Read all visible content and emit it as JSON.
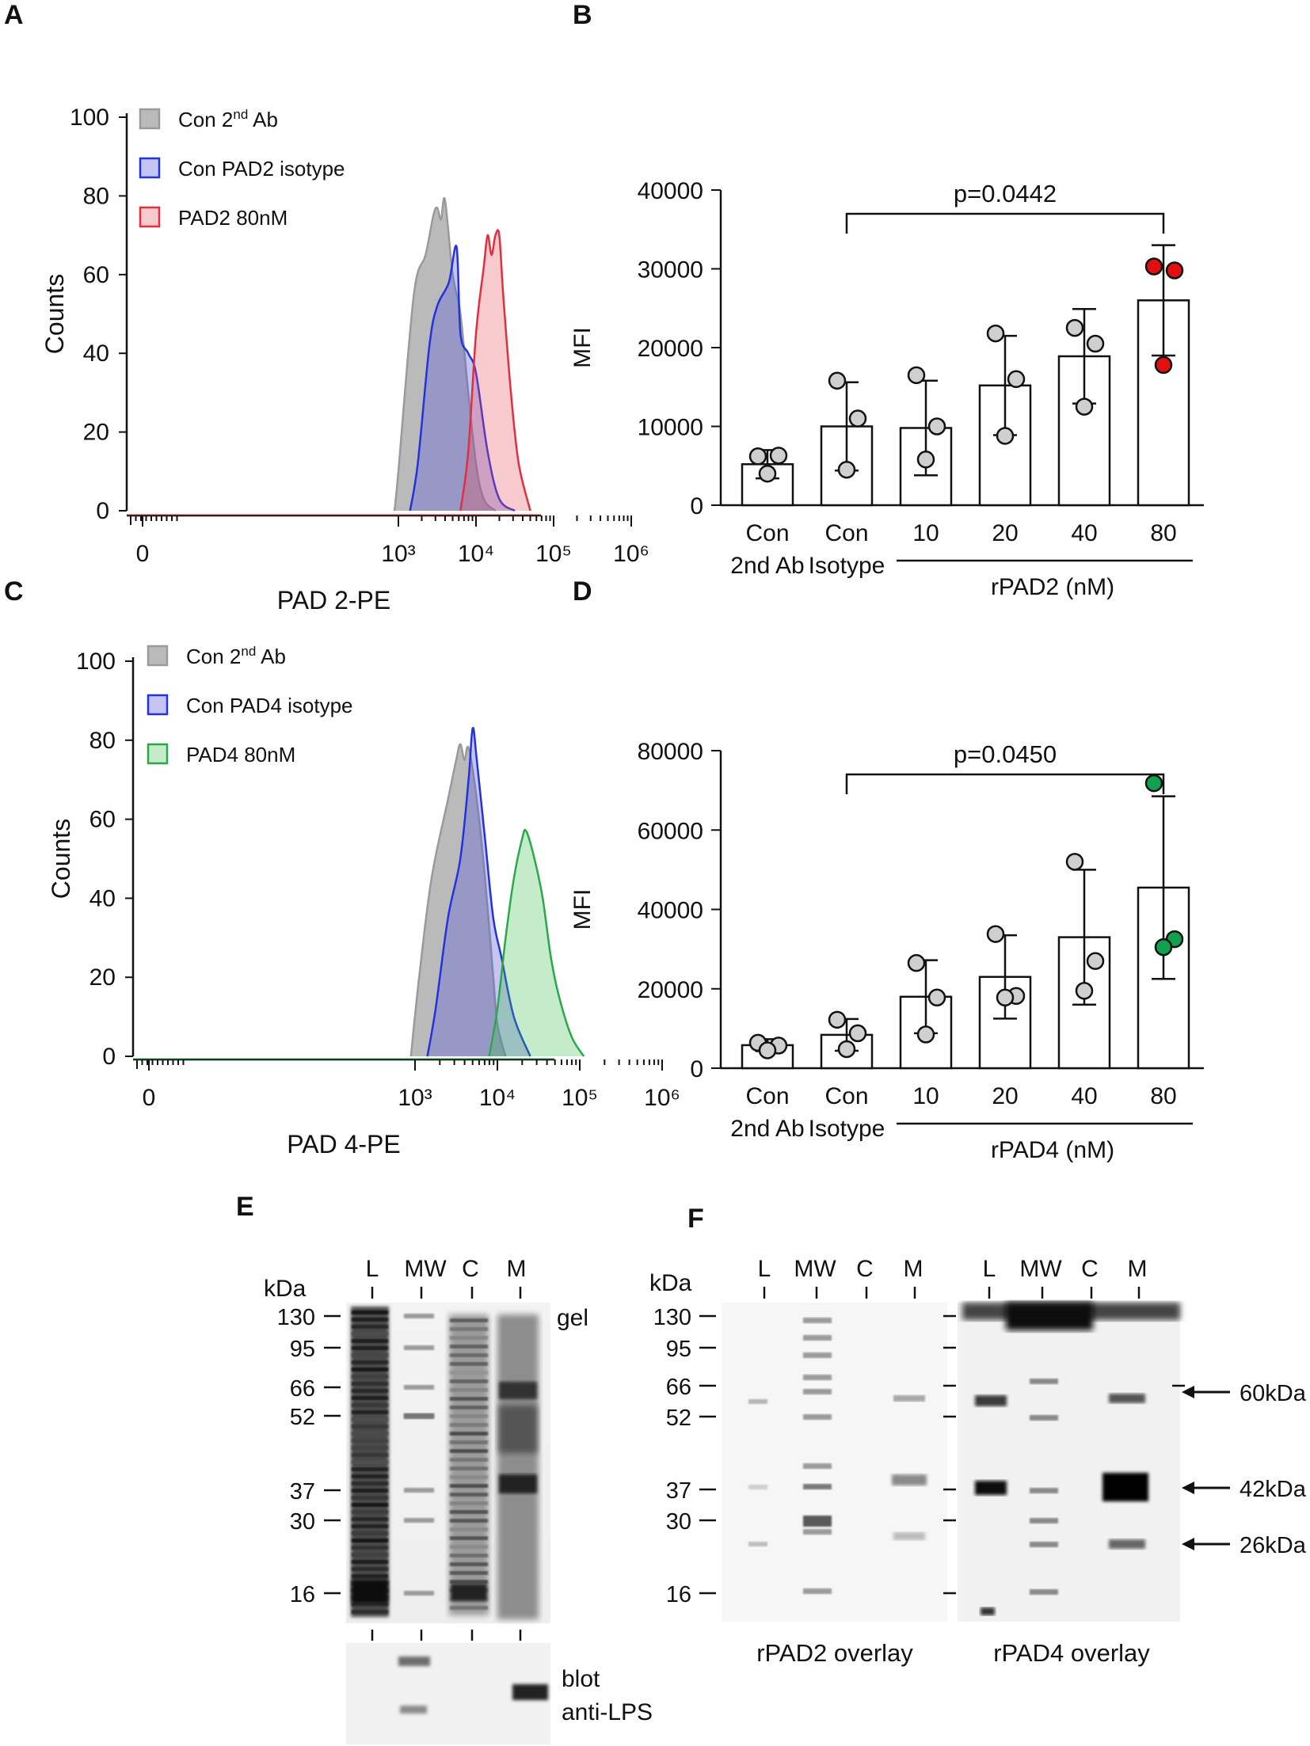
{
  "panels": {
    "A": {
      "letter": "A"
    },
    "B": {
      "letter": "B"
    },
    "C": {
      "letter": "C"
    },
    "D": {
      "letter": "D"
    },
    "E": {
      "letter": "E"
    },
    "F": {
      "letter": "F"
    }
  },
  "colors": {
    "gray": "#9a9a9a",
    "blue": "#2233dd",
    "red": "#e03040",
    "green": "#2aa84a",
    "dot_gray": "#cfcfcf",
    "dot_red": "#e01010",
    "dot_green": "#10a050"
  },
  "chart_data": [
    {
      "id": "A",
      "type": "area",
      "title": "",
      "xlabel": "PAD 2-PE",
      "ylabel": "Counts",
      "ylim": [
        0,
        100
      ],
      "yticks": [
        "0",
        "20",
        "40",
        "60",
        "80",
        "100"
      ],
      "xticks": [
        "0",
        "10³",
        "10⁴",
        "10⁵",
        "10⁶"
      ],
      "legend": [
        "Con 2nd Ab",
        "Con PAD2 isotype",
        "PAD2 80nM"
      ],
      "legend_placement": "top-left",
      "series": [
        {
          "name": "Con 2nd Ab",
          "color": "gray",
          "x": [
            2.95,
            3.0,
            3.2,
            3.35,
            3.45,
            3.5,
            3.55,
            3.6,
            3.7,
            3.8,
            3.9,
            4.0,
            4.1,
            4.25
          ],
          "y": [
            0,
            10,
            55,
            65,
            75,
            77,
            74,
            79,
            60,
            50,
            30,
            12,
            3,
            0
          ]
        },
        {
          "name": "Con PAD2 isotype",
          "color": "blue",
          "x": [
            3.15,
            3.25,
            3.4,
            3.5,
            3.65,
            3.75,
            3.8,
            3.9,
            4.0,
            4.15,
            4.3,
            4.5
          ],
          "y": [
            0,
            12,
            42,
            52,
            58,
            67,
            45,
            40,
            35,
            15,
            3,
            0
          ]
        },
        {
          "name": "PAD2 80nM",
          "color": "red",
          "x": [
            3.8,
            3.9,
            4.0,
            4.1,
            4.15,
            4.2,
            4.25,
            4.3,
            4.35,
            4.45,
            4.55,
            4.7
          ],
          "y": [
            0,
            15,
            45,
            62,
            70,
            65,
            70,
            70,
            55,
            30,
            12,
            0
          ]
        }
      ]
    },
    {
      "id": "B",
      "type": "bar",
      "ylabel": "MFI",
      "ylim": [
        0,
        40000
      ],
      "yticks": [
        "0",
        "10000",
        "20000",
        "30000",
        "40000"
      ],
      "categories": [
        "Con\n2nd Ab",
        "Con\nIsotype",
        "10",
        "20",
        "40",
        "80"
      ],
      "group_label": "rPAD2 (nM)",
      "values": [
        5200,
        10000,
        9800,
        15200,
        18900,
        26000
      ],
      "sd": [
        1800,
        5600,
        6000,
        6300,
        6000,
        7000
      ],
      "points": [
        [
          6200,
          6300,
          4000
        ],
        [
          15800,
          11000,
          4500
        ],
        [
          16500,
          10000,
          5800
        ],
        [
          21800,
          16000,
          8800
        ],
        [
          22500,
          20500,
          12500
        ],
        [
          30300,
          29800,
          17800
        ]
      ],
      "point_colors": [
        "dot_gray",
        "dot_gray",
        "dot_gray",
        "dot_gray",
        "dot_gray",
        "dot_red"
      ],
      "significance": {
        "from": 1,
        "to": 5,
        "label": "p=0.0442"
      }
    },
    {
      "id": "C",
      "type": "area",
      "xlabel": "PAD 4-PE",
      "ylabel": "Counts",
      "ylim": [
        0,
        100
      ],
      "yticks": [
        "0",
        "20",
        "40",
        "60",
        "80",
        "100"
      ],
      "xticks": [
        "0",
        "10³",
        "10⁴",
        "10⁵",
        "10⁶"
      ],
      "legend": [
        "Con 2nd Ab",
        "Con PAD4 isotype",
        "PAD4 80nM"
      ],
      "legend_placement": "top-left",
      "series": [
        {
          "name": "Con 2nd Ab",
          "color": "gray",
          "x": [
            2.95,
            3.05,
            3.2,
            3.4,
            3.5,
            3.55,
            3.6,
            3.65,
            3.75,
            3.85,
            3.95,
            4.0,
            4.1
          ],
          "y": [
            0,
            20,
            45,
            65,
            75,
            79,
            75,
            78,
            65,
            45,
            20,
            8,
            0
          ]
        },
        {
          "name": "Con PAD4 isotype",
          "color": "blue",
          "x": [
            3.15,
            3.25,
            3.4,
            3.55,
            3.65,
            3.7,
            3.75,
            3.85,
            3.95,
            4.05,
            4.2,
            4.4
          ],
          "y": [
            0,
            12,
            35,
            50,
            70,
            83,
            75,
            55,
            35,
            25,
            10,
            0
          ]
        },
        {
          "name": "PAD4 80nM",
          "color": "green",
          "x": [
            3.9,
            4.0,
            4.1,
            4.2,
            4.3,
            4.35,
            4.45,
            4.55,
            4.65,
            4.75,
            4.9,
            5.05
          ],
          "y": [
            0,
            12,
            30,
            45,
            55,
            57,
            50,
            40,
            25,
            15,
            5,
            0
          ]
        }
      ]
    },
    {
      "id": "D",
      "type": "bar",
      "ylabel": "MFI",
      "ylim": [
        0,
        80000
      ],
      "yticks": [
        "0",
        "20000",
        "40000",
        "60000",
        "80000"
      ],
      "categories": [
        "Con\n2nd Ab",
        "Con\nIsotype",
        "10",
        "20",
        "40",
        "80"
      ],
      "group_label": "rPAD4 (nM)",
      "values": [
        5800,
        8400,
        18000,
        23000,
        33000,
        45500
      ],
      "sd": [
        1500,
        4000,
        9200,
        10500,
        17000,
        23000
      ],
      "points": [
        [
          6400,
          5700,
          4500
        ],
        [
          12200,
          8800,
          4800
        ],
        [
          26500,
          17800,
          8500
        ],
        [
          33800,
          18200,
          17800
        ],
        [
          52000,
          27000,
          19500
        ],
        [
          71800,
          32500,
          30500
        ]
      ],
      "point_colors": [
        "dot_gray",
        "dot_gray",
        "dot_gray",
        "dot_gray",
        "dot_gray",
        "dot_green"
      ],
      "significance": {
        "from": 1,
        "to": 5,
        "label": "p=0.0450"
      }
    }
  ],
  "gel_E": {
    "kda_label": "kDa",
    "markers": [
      "130",
      "95",
      "66",
      "52",
      "37",
      "30",
      "16"
    ],
    "lanes": [
      "L",
      "MW",
      "C",
      "M"
    ],
    "gel_label": "gel",
    "blot_label_1": "blot",
    "blot_label_2": "anti-LPS"
  },
  "gel_F": {
    "kda_label": "kDa",
    "markers": [
      "130",
      "95",
      "66",
      "52",
      "37",
      "30",
      "16"
    ],
    "lanes_left": [
      "L",
      "MW",
      "C",
      "M"
    ],
    "lanes_right": [
      "L",
      "MW",
      "C",
      "M"
    ],
    "caption_left": "rPAD2 overlay",
    "caption_right": "rPAD4 overlay",
    "arrows": [
      "60kDa",
      "42kDa",
      "26kDa"
    ]
  }
}
